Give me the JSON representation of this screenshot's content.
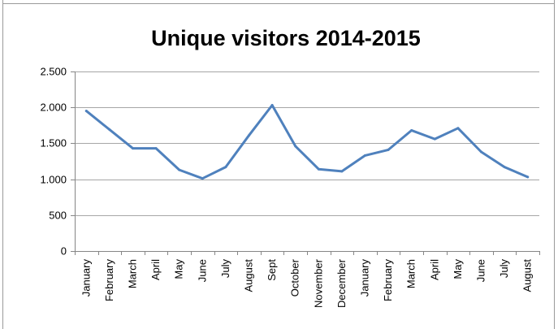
{
  "chart_data": {
    "type": "line",
    "title": "Unique visitors 2014-2015",
    "xlabel": "",
    "ylabel": "",
    "categories": [
      "January",
      "February",
      "March",
      "April",
      "May",
      "June",
      "July",
      "August",
      "Sept",
      "October",
      "November",
      "December",
      "January",
      "February",
      "March",
      "April",
      "May",
      "June",
      "July",
      "August"
    ],
    "series": [
      {
        "values": [
          1950,
          1690,
          1430,
          1430,
          1130,
          1010,
          1170,
          1610,
          2030,
          1460,
          1140,
          1110,
          1330,
          1410,
          1680,
          1560,
          1710,
          1380,
          1170,
          1030
        ]
      }
    ],
    "ylim": [
      0,
      2500
    ],
    "yticks": [
      0,
      500,
      1000,
      1500,
      2000,
      2500
    ],
    "ytick_labels": [
      "0",
      "500",
      "1.000",
      "1.500",
      "2.000",
      "2.500"
    ],
    "grid": true,
    "legend": "none",
    "line_color": "#4f81bd",
    "grid_color": "#a6a6a6"
  }
}
